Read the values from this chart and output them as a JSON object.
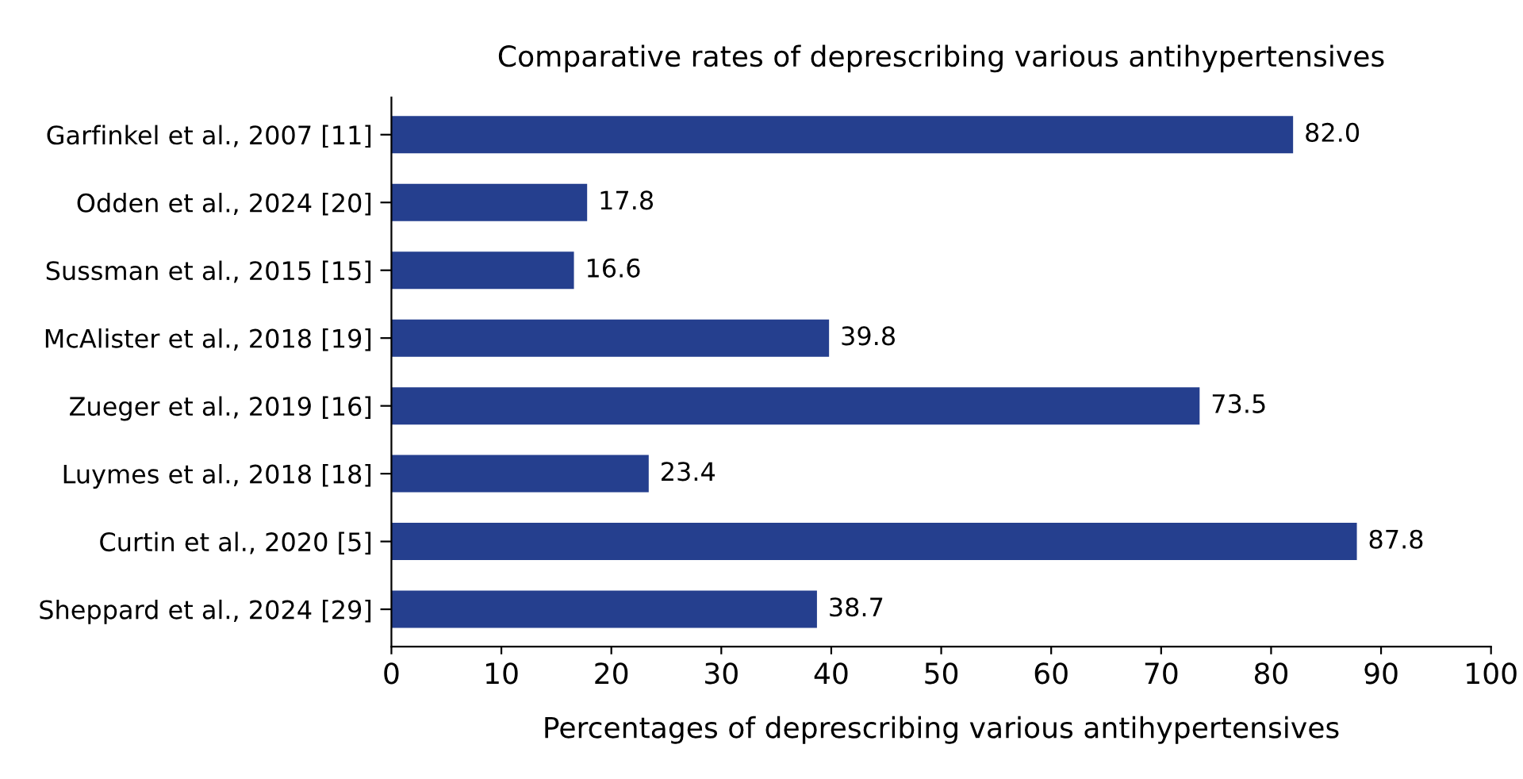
{
  "chart_data": {
    "type": "bar",
    "orientation": "horizontal",
    "title": "Comparative rates of deprescribing various antihypertensives",
    "xlabel": "Percentages of deprescribing various antihypertensives",
    "categories": [
      "Garfinkel et al., 2007 [11]",
      "Odden et al., 2024 [20]",
      "Sussman et al., 2015 [15]",
      "McAlister et al., 2018 [19]",
      "Zueger et al., 2019 [16]",
      "Luymes et al., 2018 [18]",
      "Curtin et al., 2020 [5]",
      "Sheppard et al., 2024 [29]"
    ],
    "values": [
      82.0,
      17.8,
      16.6,
      39.8,
      73.5,
      23.4,
      87.8,
      38.7
    ],
    "value_labels": [
      "82.0",
      "17.8",
      "16.6",
      "39.8",
      "73.5",
      "23.4",
      "87.8",
      "38.7"
    ],
    "color": "#253f8e",
    "grid": false,
    "legend": false,
    "xlim": [
      0,
      100
    ],
    "xticks": [
      0,
      10,
      20,
      30,
      40,
      50,
      60,
      70,
      80,
      90,
      100
    ]
  }
}
